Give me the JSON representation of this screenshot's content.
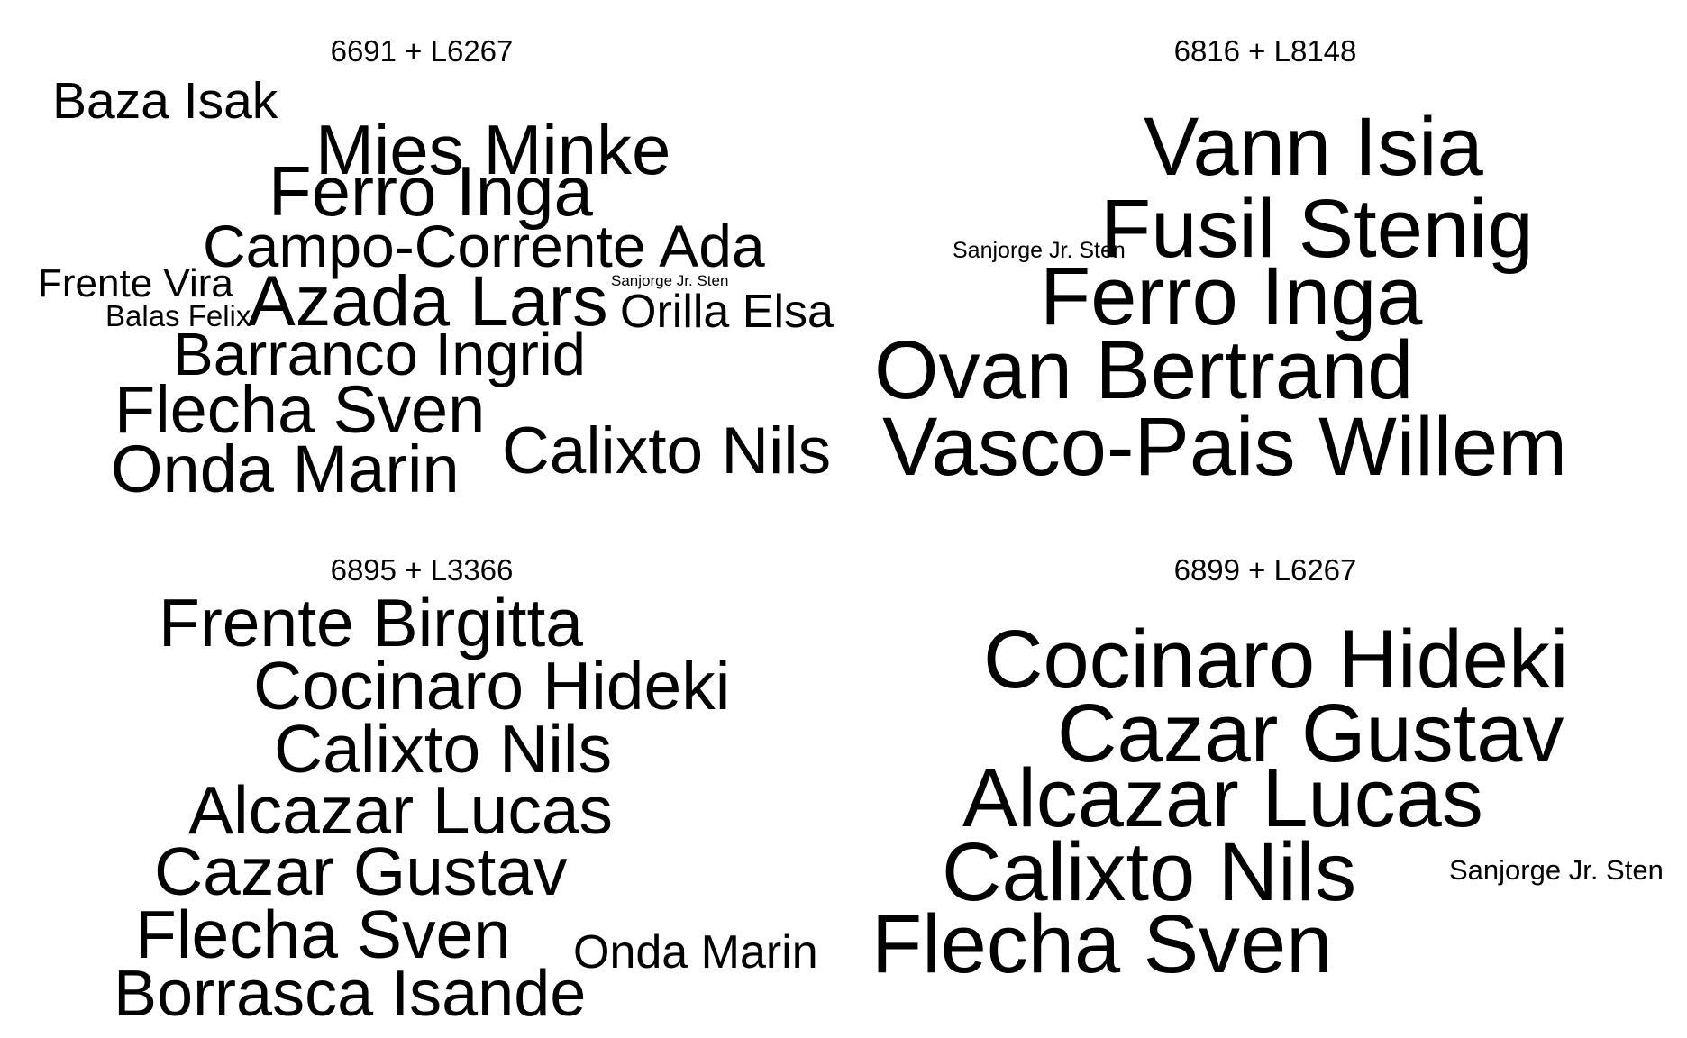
{
  "chart_data": [
    {
      "type": "wordcloud",
      "title": "6691 + L6267",
      "color": "#000000",
      "words": [
        {
          "text": "Baza Isak",
          "weight": 0.62
        },
        {
          "text": "Mies Minke",
          "weight": 0.85
        },
        {
          "text": "Ferro Inga",
          "weight": 0.85
        },
        {
          "text": "Campo-Corrente Ada",
          "weight": 0.72
        },
        {
          "text": "Frente Vira",
          "weight": 0.48
        },
        {
          "text": "Balas Felix",
          "weight": 0.36
        },
        {
          "text": "Azada Lars",
          "weight": 0.86
        },
        {
          "text": "Sanjorge Jr. Sten",
          "weight": 0.18
        },
        {
          "text": "Orilla Elsa",
          "weight": 0.56
        },
        {
          "text": "Barranco Ingrid",
          "weight": 0.73
        },
        {
          "text": "Flecha Sven",
          "weight": 0.8
        },
        {
          "text": "Calixto Nils",
          "weight": 0.79
        },
        {
          "text": "Onda Marin",
          "weight": 0.8
        }
      ]
    },
    {
      "type": "wordcloud",
      "title": "6816 + L8148",
      "color": "#000000",
      "words": [
        {
          "text": "Vann Isia",
          "weight": 1.0
        },
        {
          "text": "Sanjorge Jr. Sten",
          "weight": 0.27
        },
        {
          "text": "Fusil Stenig",
          "weight": 1.0
        },
        {
          "text": "Ferro Inga",
          "weight": 1.0
        },
        {
          "text": "Ovan Bertrand",
          "weight": 1.0
        },
        {
          "text": "Vasco-Pais Willem",
          "weight": 1.0
        }
      ]
    },
    {
      "type": "wordcloud",
      "title": "6895 + L3366",
      "color": "#000000",
      "words": [
        {
          "text": "Frente Birgitta",
          "weight": 0.82
        },
        {
          "text": "Cocinaro Hideki",
          "weight": 0.82
        },
        {
          "text": "Calixto Nils",
          "weight": 0.82
        },
        {
          "text": "Alcazar Lucas",
          "weight": 0.82
        },
        {
          "text": "Cazar Gustav",
          "weight": 0.82
        },
        {
          "text": "Flecha Sven",
          "weight": 0.82
        },
        {
          "text": "Onda Marin",
          "weight": 0.56
        },
        {
          "text": "Borrasca Isande",
          "weight": 0.78
        }
      ]
    },
    {
      "type": "wordcloud",
      "title": "6899 + L6267",
      "color": "#000000",
      "words": [
        {
          "text": "Cocinaro Hideki",
          "weight": 1.0
        },
        {
          "text": "Cazar Gustav",
          "weight": 1.0
        },
        {
          "text": "Alcazar Lucas",
          "weight": 1.0
        },
        {
          "text": "Calixto Nils",
          "weight": 1.0
        },
        {
          "text": "Sanjorge Jr. Sten",
          "weight": 0.34
        },
        {
          "text": "Flecha Sven",
          "weight": 1.0
        }
      ]
    }
  ]
}
